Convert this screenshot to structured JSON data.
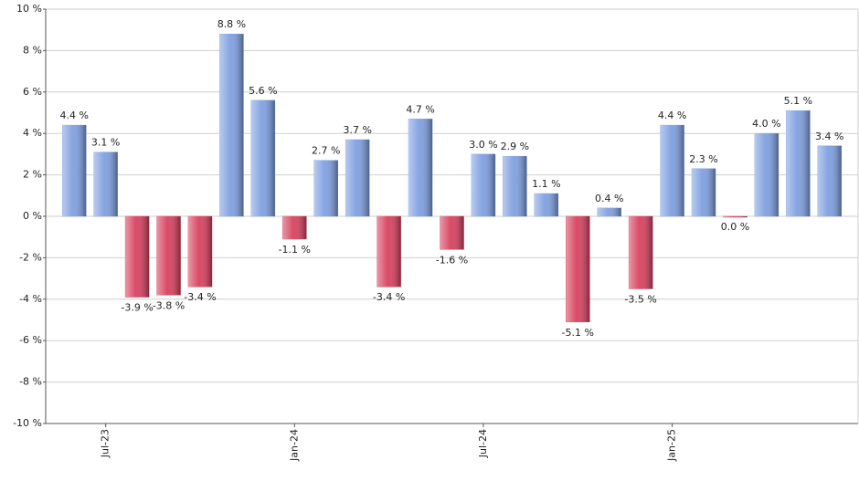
{
  "chart_data": {
    "type": "bar",
    "categories": [
      null,
      "Jul-23",
      null,
      null,
      null,
      null,
      null,
      "Jan-24",
      null,
      null,
      null,
      null,
      null,
      "Jul-24",
      null,
      null,
      null,
      null,
      null,
      "Jan-25",
      null,
      null,
      null,
      null,
      null
    ],
    "values": [
      4.4,
      3.1,
      -3.9,
      -3.8,
      -3.4,
      8.8,
      5.6,
      -1.1,
      2.7,
      3.7,
      -3.4,
      4.7,
      -1.6,
      3.0,
      2.9,
      1.1,
      -5.1,
      0.4,
      -3.5,
      4.4,
      2.3,
      0.0,
      4.0,
      5.1,
      3.4
    ],
    "value_labels": [
      "4.4 %",
      "3.1 %",
      "-3.9 %",
      "-3.8 %",
      "-3.4 %",
      "8.8 %",
      "5.6 %",
      "-1.1 %",
      "2.7 %",
      "3.7 %",
      "-3.4 %",
      "4.7 %",
      "-1.6 %",
      "3.0 %",
      "2.9 %",
      "1.1 %",
      "-5.1 %",
      "0.4 %",
      "-3.5 %",
      "4.4 %",
      "2.3 %",
      "0.0 %",
      "4.0 %",
      "5.1 %",
      "3.4 %"
    ],
    "colors": {
      "positive": "#7e9fe0",
      "negative": "#d8405e"
    },
    "ylim": [
      -10,
      10
    ],
    "yticks": [
      {
        "value": -10,
        "label": "-10 %"
      },
      {
        "value": -8,
        "label": "-8 %"
      },
      {
        "value": -6,
        "label": "-6 %"
      },
      {
        "value": -4,
        "label": "-4 %"
      },
      {
        "value": -2,
        "label": "-2 %"
      },
      {
        "value": 0,
        "label": "0 %"
      },
      {
        "value": 2,
        "label": "2 %"
      },
      {
        "value": 4,
        "label": "4 %"
      },
      {
        "value": 6,
        "label": "6 %"
      },
      {
        "value": 8,
        "label": "8 %"
      },
      {
        "value": 10,
        "label": "10 %"
      }
    ],
    "grid": true
  }
}
